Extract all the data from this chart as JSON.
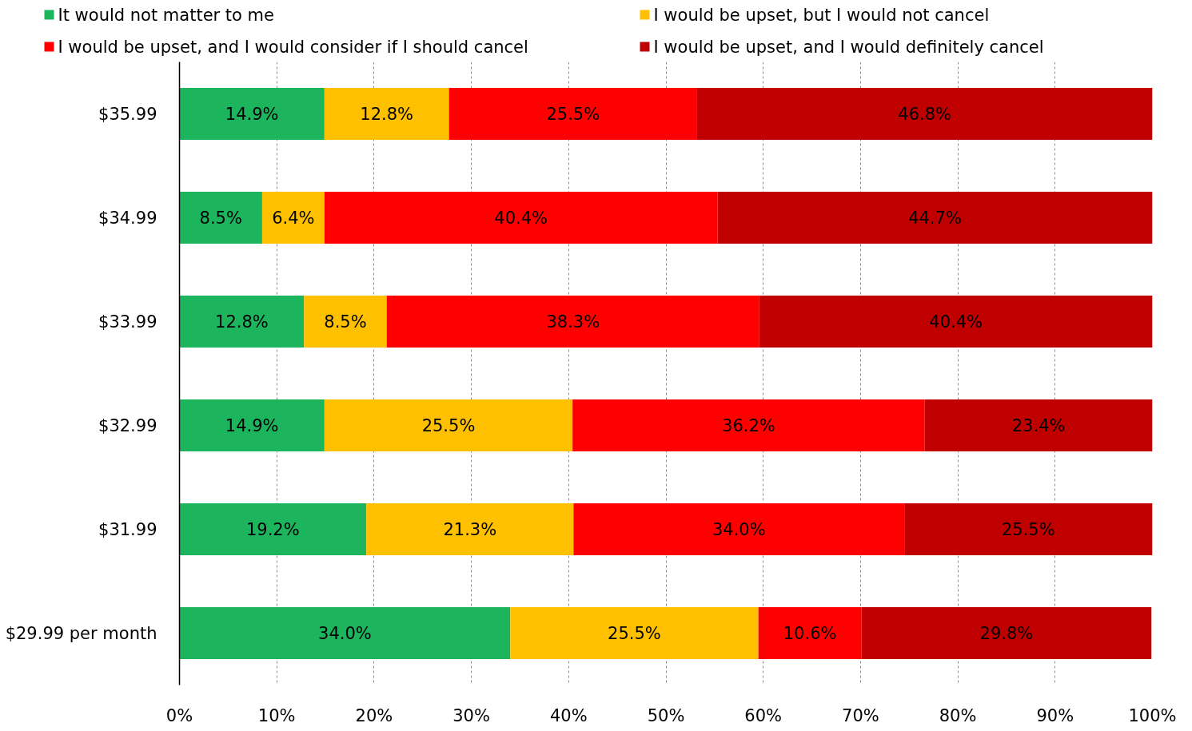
{
  "chart_data": {
    "type": "bar",
    "orientation": "horizontal",
    "stacked": true,
    "categories": [
      "$35.99",
      "$34.99",
      "$33.99",
      "$32.99",
      "$31.99",
      "$29.99 per month"
    ],
    "series": [
      {
        "name": "It would not matter to me",
        "color": "#1db45e",
        "values": [
          14.9,
          8.5,
          12.8,
          14.9,
          19.2,
          34.0
        ],
        "value_labels": [
          "14.9%",
          "8.5%",
          "12.8%",
          "14.9%",
          "19.2%",
          "34.0%"
        ]
      },
      {
        "name": "I would be upset, but I would not cancel",
        "color": "#ffc000",
        "values": [
          12.8,
          6.4,
          8.5,
          25.5,
          21.3,
          25.5
        ],
        "value_labels": [
          "12.8%",
          "6.4%",
          "8.5%",
          "25.5%",
          "21.3%",
          "25.5%"
        ]
      },
      {
        "name": "I would be upset, and I would consider if I should cancel",
        "color": "#ff0000",
        "values": [
          25.5,
          40.4,
          38.3,
          36.2,
          34.0,
          10.6
        ],
        "value_labels": [
          "25.5%",
          "40.4%",
          "38.3%",
          "36.2%",
          "34.0%",
          "10.6%"
        ]
      },
      {
        "name": "I would be upset, and I would definitely cancel",
        "color": "#c00000",
        "values": [
          46.8,
          44.7,
          40.4,
          23.4,
          25.5,
          29.8
        ],
        "value_labels": [
          "46.8%",
          "44.7%",
          "40.4%",
          "23.4%",
          "25.5%",
          "29.8%"
        ]
      }
    ],
    "xlim": [
      0,
      100
    ],
    "xticks": [
      {
        "value": 0,
        "label": "0%"
      },
      {
        "value": 10,
        "label": "10%"
      },
      {
        "value": 20,
        "label": "20%"
      },
      {
        "value": 30,
        "label": "30%"
      },
      {
        "value": 40,
        "label": "40%"
      },
      {
        "value": 50,
        "label": "50%"
      },
      {
        "value": 60,
        "label": "60%"
      },
      {
        "value": 70,
        "label": "70%"
      },
      {
        "value": 80,
        "label": "80%"
      },
      {
        "value": 90,
        "label": "90%"
      },
      {
        "value": 100,
        "label": "100%"
      }
    ],
    "grid": "x",
    "legend": "top"
  }
}
